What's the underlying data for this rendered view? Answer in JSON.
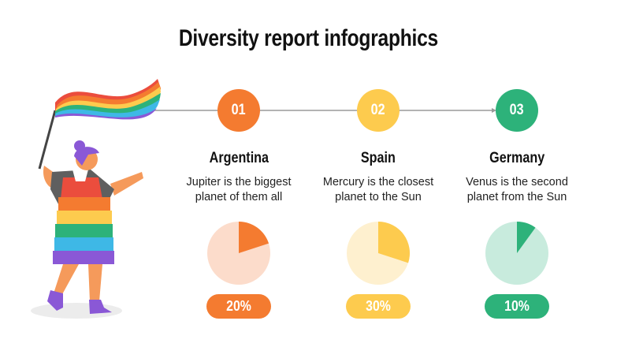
{
  "title": "Diversity report infographics",
  "steps": [
    {
      "number": "01",
      "name": "Argentina",
      "desc_line1": "Jupiter is the biggest",
      "desc_line2": "planet of them all",
      "percent_label": "20%",
      "value": 20,
      "color": "#F47B30",
      "light_color": "#FCDCCB"
    },
    {
      "number": "02",
      "name": "Spain",
      "desc_line1": "Mercury is the closest",
      "desc_line2": "planet to the Sun",
      "percent_label": "30%",
      "value": 30,
      "color": "#FDCB4E",
      "light_color": "#FEF0CF"
    },
    {
      "number": "03",
      "name": "Germany",
      "desc_line1": "Venus is the second",
      "desc_line2": "planet from the Sun",
      "percent_label": "10%",
      "value": 10,
      "color": "#2DB27A",
      "light_color": "#C8EBDD"
    }
  ]
}
